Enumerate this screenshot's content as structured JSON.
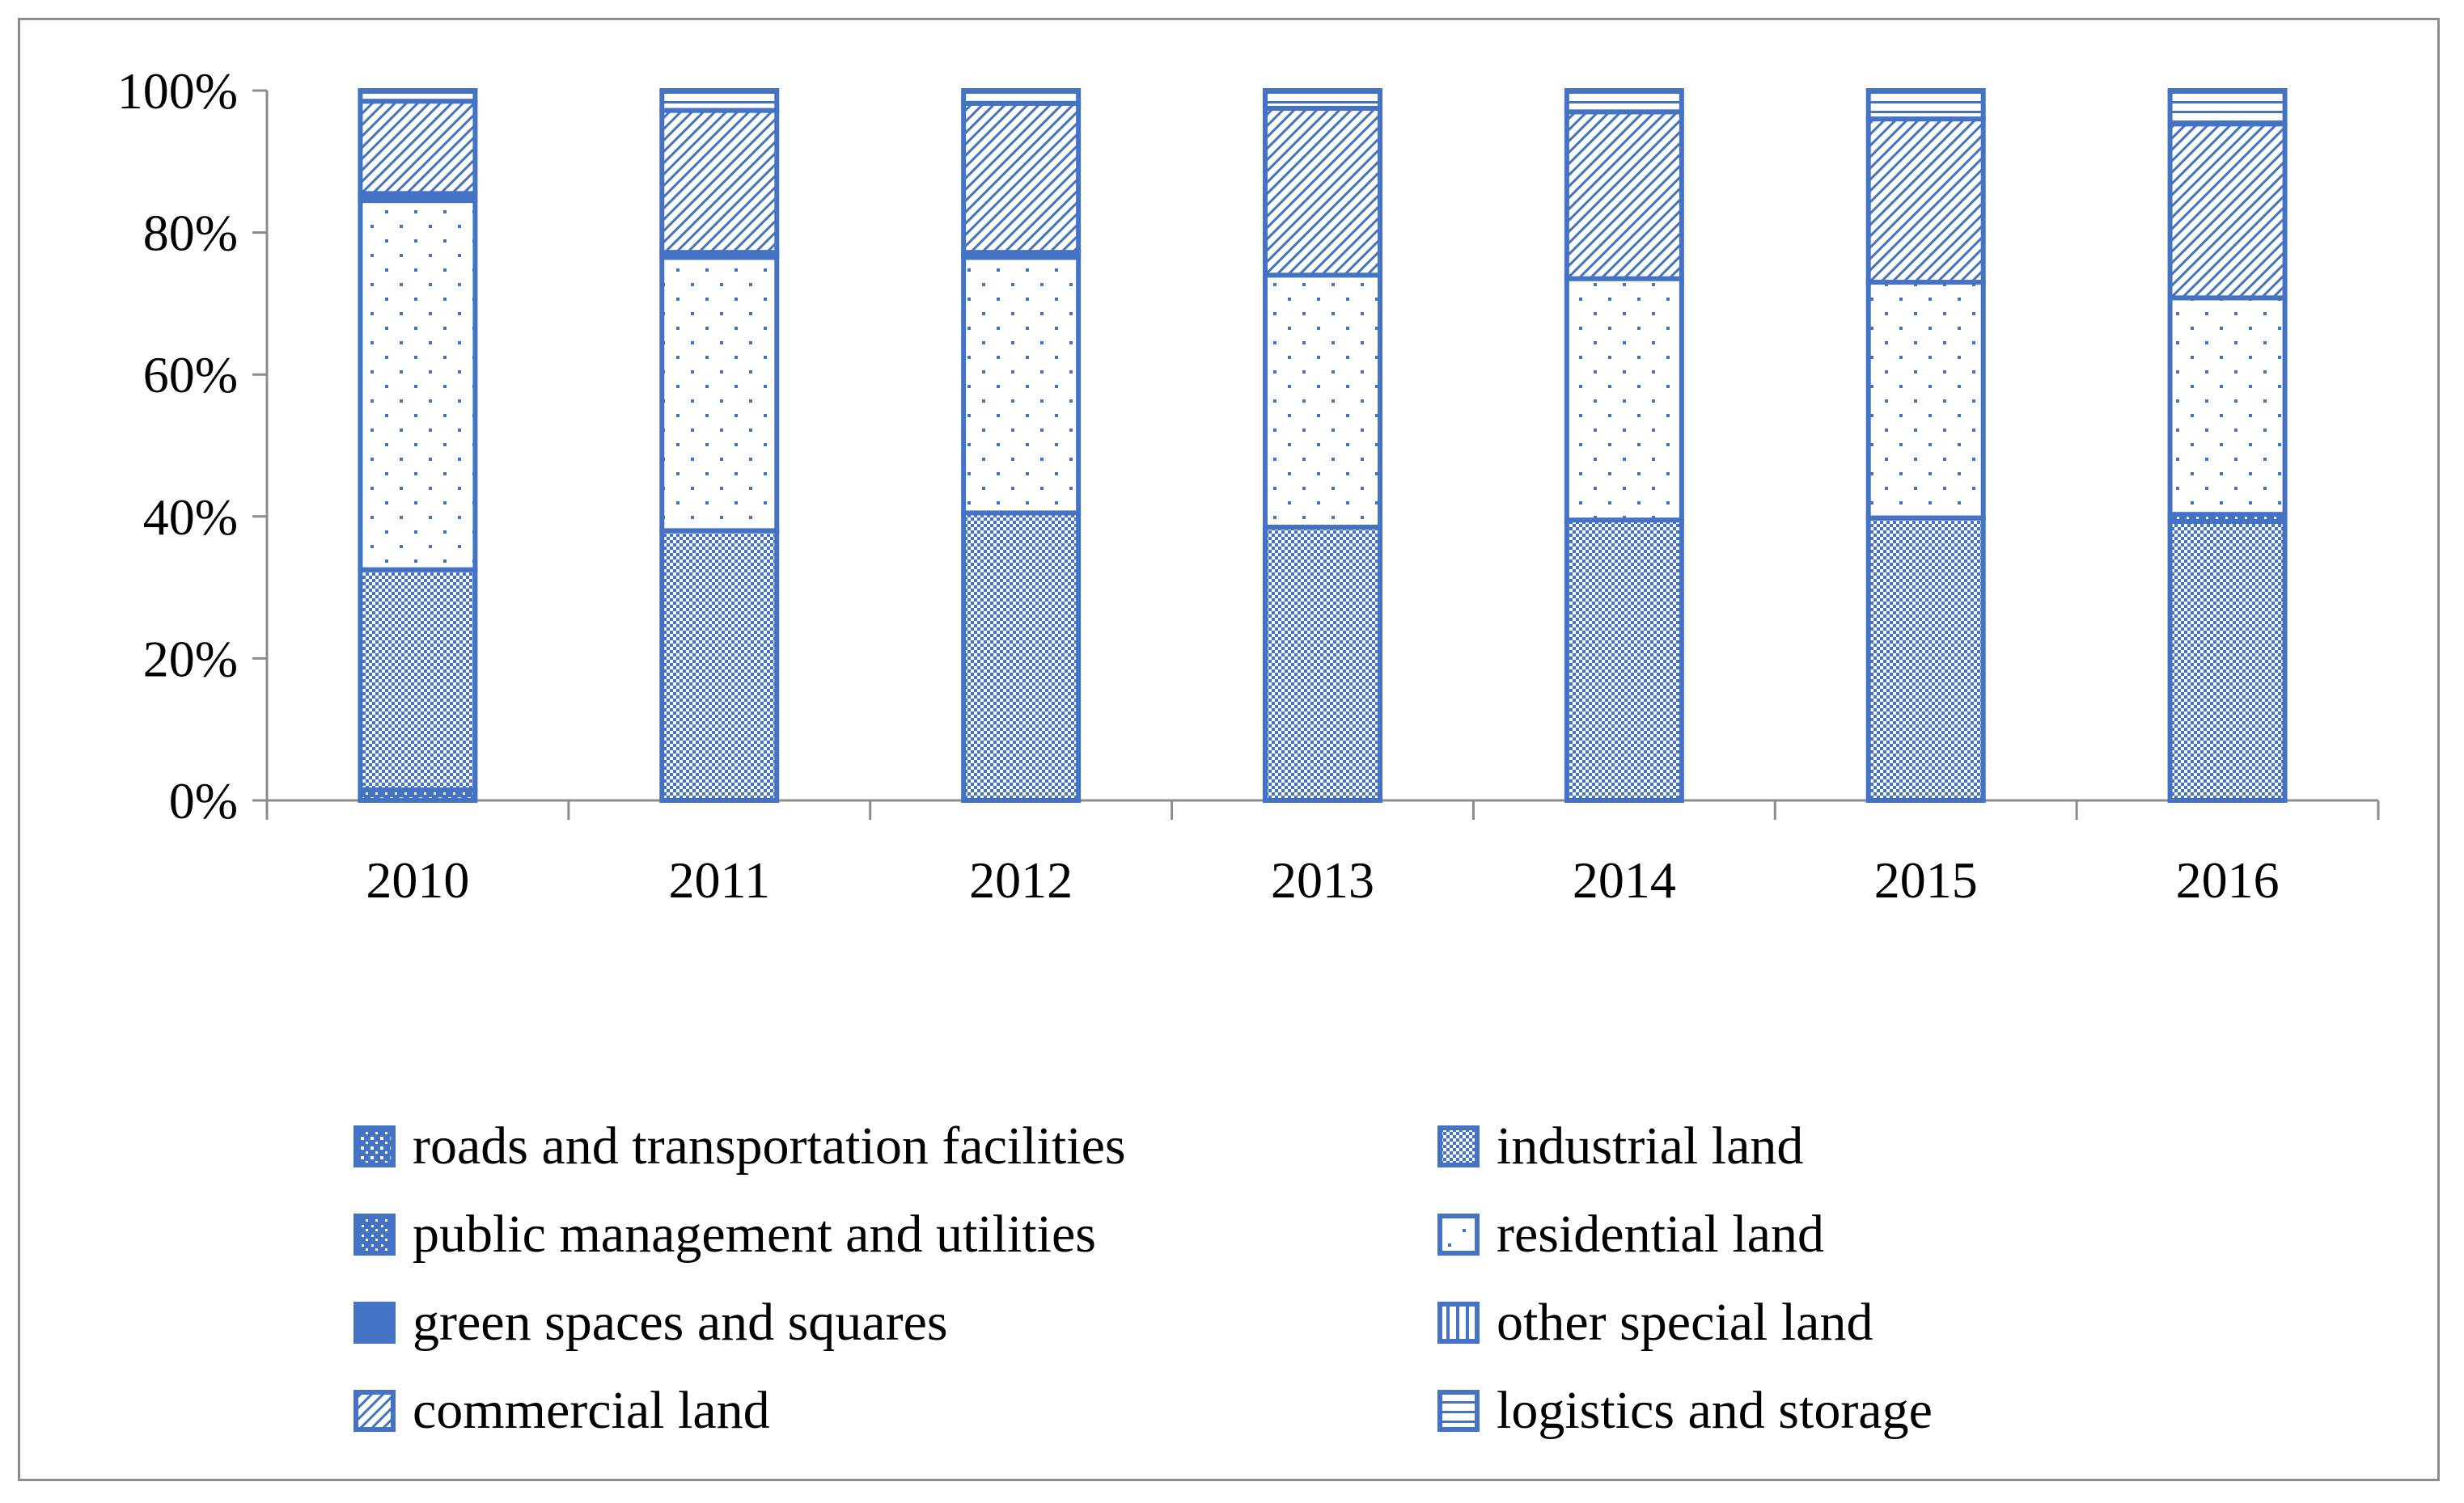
{
  "chart_data": {
    "type": "bar",
    "stacked": true,
    "percent": true,
    "title": "",
    "xlabel": "",
    "ylabel": "",
    "ylim": [
      0,
      100
    ],
    "yticks": [
      "0%",
      "20%",
      "40%",
      "60%",
      "80%",
      "100%"
    ],
    "ytick_values": [
      0,
      20,
      40,
      60,
      80,
      100
    ],
    "categories": [
      "2010",
      "2011",
      "2012",
      "2013",
      "2014",
      "2015",
      "2016"
    ],
    "series": [
      {
        "name": "roads and transportation facilities",
        "pattern": "grid",
        "values": [
          1.5,
          0,
          0,
          0,
          0,
          0,
          0
        ]
      },
      {
        "name": "industrial land",
        "pattern": "checker",
        "values": [
          31,
          38,
          40.5,
          38.5,
          39.5,
          39.8,
          39.3
        ]
      },
      {
        "name": "public management and utilities",
        "pattern": "dotdense",
        "values": [
          0,
          0,
          0,
          0,
          0,
          0,
          1.0
        ]
      },
      {
        "name": "residential land",
        "pattern": "dots",
        "values": [
          52,
          38.5,
          36,
          35.5,
          34,
          33.2,
          30.5
        ]
      },
      {
        "name": "green spaces and squares",
        "pattern": "solid",
        "values": [
          1.0,
          0.7,
          0.7,
          0,
          0,
          0,
          0
        ]
      },
      {
        "name": "other special land",
        "pattern": "vlines",
        "values": [
          0,
          0,
          0,
          0,
          0,
          0,
          0
        ]
      },
      {
        "name": "commercial land",
        "pattern": "diagonal",
        "values": [
          13,
          20,
          21,
          23.5,
          23.5,
          23,
          24.5
        ]
      },
      {
        "name": "logistics and storage",
        "pattern": "hline",
        "values": [
          1.5,
          2.8,
          1.8,
          2.5,
          3.0,
          4.0,
          4.7
        ]
      }
    ],
    "legend_position": "bottom",
    "grid": false
  },
  "colors": {
    "bar_border": "#4472c4",
    "pattern": "#4472c4",
    "axis": "#8c8c8c",
    "text": "#000000"
  }
}
